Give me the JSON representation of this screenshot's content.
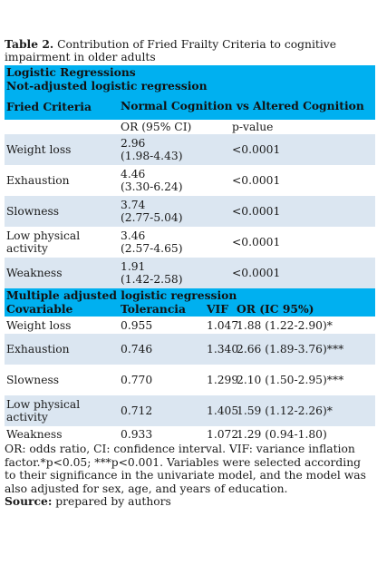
{
  "caption": {
    "label": "Table 2.",
    "text": " Contribution of Fried Frailty Criteria to cognitive impairment in older adults"
  },
  "header": {
    "section_title": "Logistic Regressions",
    "subsection_title": "Not-adjusted logistic regression",
    "col_criteria": "Fried Criteria",
    "col_group": "Normal Cognition vs Altered Cognition",
    "sub_or": "OR (95% CI)",
    "sub_p": "p-value"
  },
  "unadjusted_rows": [
    {
      "criterion": "Weight loss",
      "or": "2.96",
      "ci": "(1.98-4.43)",
      "p": "<0.0001"
    },
    {
      "criterion": "Exhaustion",
      "or": "4.46",
      "ci": "(3.30-6.24)",
      "p": "<0.0001"
    },
    {
      "criterion": "Slowness",
      "or": "3.74",
      "ci": "(2.77-5.04)",
      "p": "<0.0001"
    },
    {
      "criterion": "Low physical activity",
      "or": "3.46",
      "ci": "(2.57-4.65)",
      "p": "<0.0001"
    },
    {
      "criterion": "Weakness",
      "or": "1.91",
      "ci": "(1.42-2.58)",
      "p": "<0.0001"
    }
  ],
  "adjusted": {
    "title": "Multiple adjusted logistic regression",
    "col_covariable": "Covariable",
    "col_tolerance": "Tolerancia",
    "col_vif": "VIF",
    "col_or": "OR (IC 95%)",
    "rows": [
      {
        "covariable": "Weight loss",
        "tolerance": "0.955",
        "vif": "1.047",
        "or": "1.88 (1.22-2.90)*"
      },
      {
        "covariable": "Exhaustion",
        "tolerance": "0.746",
        "vif": "1.340",
        "or": "2.66 (1.89-3.76)***"
      },
      {
        "covariable": "Slowness",
        "tolerance": "0.770",
        "vif": "1.299",
        "or": "2.10 (1.50-2.95)***"
      },
      {
        "covariable": "Low physical activity",
        "tolerance": "0.712",
        "vif": "1.405",
        "or": "1.59 (1.12-2.26)*"
      },
      {
        "covariable": "Weakness",
        "tolerance": "0.933",
        "vif": "1.072",
        "or": "1.29 (0.94-1.80)"
      }
    ]
  },
  "notes": {
    "footnote": "OR: odds ratio, CI: confidence interval. VIF: variance inflation factor.*p<0.05; ***p<0.001. Variables were selected according to their significance in the univariate model, and the model was also adjusted for sex, age, and years of education.",
    "source_label": "Source:",
    "source_text": " prepared by authors"
  },
  "colors": {
    "band": "#00b0f0",
    "alt_row": "#dbe6f1"
  }
}
